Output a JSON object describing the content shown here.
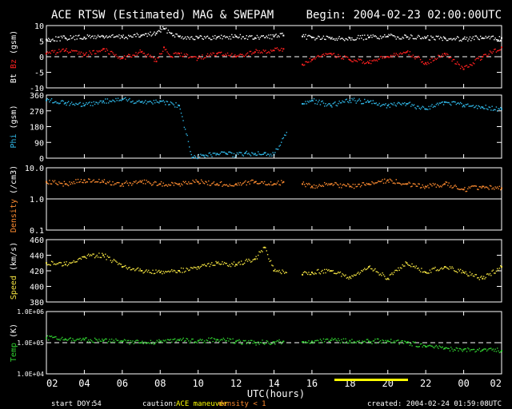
{
  "title": "ACE RTSW (Estimated) MAG & SWEPAM",
  "begin": "Begin: 2004-02-23 02:00:00UTC",
  "xlabel": "UTC(hours)",
  "x_ticks": [
    "02",
    "04",
    "06",
    "08",
    "10",
    "12",
    "14",
    "16",
    "18",
    "20",
    "22",
    "00",
    "02"
  ],
  "footer": {
    "start_doy_label": "start DOY:",
    "start_doy": "54",
    "caution_label": "caution:",
    "maneuver": "ACE maneuver",
    "density_note": "density < 1",
    "created": "created: 2004-02-24 01:59:08UTC"
  },
  "colors": {
    "background": "#000000",
    "axes": "#ffffff",
    "bt": "#ffffff",
    "bz": "#ff2020",
    "phi": "#30b8e8",
    "density": "#ff8c30",
    "speed": "#f0e040",
    "temp": "#30d030",
    "maneuver": "#ffff00"
  },
  "chart_data": [
    {
      "type": "scatter",
      "ylabel_parts": [
        "Bt",
        "Bz",
        "(gsm)"
      ],
      "ylim": [
        -10,
        10
      ],
      "y_ticks": [
        "10",
        "5",
        "0",
        "-5",
        "-10"
      ],
      "series": [
        {
          "name": "Bt",
          "x": [
            2,
            3,
            4,
            5,
            6,
            7,
            7.8,
            8.2,
            8.6,
            9,
            10,
            11,
            12,
            13,
            14,
            14.5,
            15.5,
            16,
            17,
            18,
            19,
            20,
            21,
            22,
            23,
            24,
            25,
            26
          ],
          "y": [
            5.5,
            6,
            6.2,
            6.5,
            6.3,
            6.8,
            7.5,
            9,
            7.5,
            6.5,
            6,
            6.2,
            6.5,
            6,
            6.5,
            6.8,
            6.5,
            6.2,
            5.8,
            6,
            6.2,
            6.5,
            6.3,
            6,
            6,
            5.8,
            6,
            6
          ]
        },
        {
          "name": "Bz",
          "x": [
            2,
            3,
            4,
            5,
            6,
            7,
            7.8,
            8.2,
            8.6,
            9,
            10,
            11,
            12,
            13,
            14,
            14.5,
            15.5,
            16,
            17,
            18,
            19,
            20,
            21,
            22,
            23,
            24,
            25,
            26
          ],
          "y": [
            1,
            2,
            0.5,
            2.5,
            -0.5,
            1.5,
            -1.5,
            3,
            0,
            1,
            -0.5,
            1,
            0,
            1.5,
            2,
            2.5,
            -2.5,
            -1,
            1,
            -1,
            -2,
            0,
            1.5,
            -2,
            1,
            -4,
            0,
            3
          ]
        }
      ]
    },
    {
      "type": "scatter",
      "ylabel_parts": [
        "Phi",
        "(gsm)"
      ],
      "ylim": [
        0,
        360
      ],
      "y_ticks": [
        "360",
        "270",
        "180",
        "90",
        "0"
      ],
      "series": [
        {
          "name": "Phi",
          "x": [
            2,
            3,
            4,
            5,
            6,
            7,
            8,
            9,
            9.7,
            10.3,
            11,
            11.5,
            12,
            12.5,
            13,
            13.5,
            14,
            15.5,
            16,
            17,
            18,
            19,
            20,
            21,
            22,
            23,
            24,
            25,
            26
          ],
          "y": [
            330,
            315,
            300,
            325,
            335,
            320,
            325,
            300,
            3,
            15,
            25,
            25,
            15,
            30,
            25,
            30,
            20,
            310,
            330,
            300,
            330,
            320,
            300,
            310,
            280,
            320,
            300,
            290,
            280
          ]
        }
      ]
    },
    {
      "type": "scatter",
      "ylabel_parts": [
        "Density",
        "(/cm3)"
      ],
      "yscale": "log",
      "ylim": [
        0.1,
        10
      ],
      "y_ticks": [
        "10.0",
        "1.0",
        "0.1"
      ],
      "series": [
        {
          "name": "Density",
          "x": [
            2,
            3,
            4,
            5,
            6,
            7,
            8,
            9,
            10,
            11,
            12,
            13,
            14,
            14.5,
            15.5,
            16,
            17,
            18,
            19,
            20,
            21,
            22,
            23,
            24,
            25,
            26
          ],
          "y": [
            3.5,
            3,
            4,
            3.5,
            3,
            3.5,
            3,
            3,
            3.5,
            3,
            3,
            3.5,
            3,
            3.5,
            3,
            2.5,
            3,
            2.5,
            3,
            4,
            3,
            2.5,
            3,
            2,
            2.5,
            2.2
          ]
        }
      ]
    },
    {
      "type": "scatter",
      "ylabel_parts": [
        "Speed",
        "(km/s)"
      ],
      "ylim": [
        380,
        460
      ],
      "y_ticks": [
        "460",
        "440",
        "420",
        "400",
        "380"
      ],
      "series": [
        {
          "name": "Speed",
          "x": [
            2,
            3,
            4,
            5,
            6,
            7,
            8,
            9,
            10,
            11,
            12,
            13,
            13.5,
            14,
            15.5,
            16,
            17,
            18,
            19,
            20,
            21,
            22,
            23,
            24,
            25,
            26
          ],
          "y": [
            430,
            428,
            438,
            440,
            425,
            420,
            418,
            420,
            425,
            430,
            428,
            435,
            450,
            420,
            415,
            418,
            420,
            412,
            425,
            410,
            430,
            418,
            425,
            418,
            410,
            425
          ]
        }
      ]
    },
    {
      "type": "scatter",
      "ylabel_parts": [
        "Temp",
        "(K)"
      ],
      "yscale": "log",
      "ylim": [
        10000,
        1000000
      ],
      "y_ticks": [
        "1.0E+06",
        "1.0E+05",
        "1.0E+04"
      ],
      "series": [
        {
          "name": "Temp",
          "x": [
            2,
            3,
            4,
            5,
            6,
            7,
            8,
            9,
            10,
            11,
            12,
            13,
            14,
            14.5,
            15.5,
            16,
            17,
            18,
            19,
            20,
            21,
            22,
            23,
            24,
            25,
            26
          ],
          "y": [
            140000,
            130000,
            125000,
            115000,
            110000,
            100000,
            110000,
            120000,
            115000,
            125000,
            110000,
            100000,
            105000,
            110000,
            105000,
            110000,
            120000,
            115000,
            110000,
            115000,
            100000,
            75000,
            65000,
            60000,
            58000,
            55000
          ]
        }
      ]
    }
  ]
}
